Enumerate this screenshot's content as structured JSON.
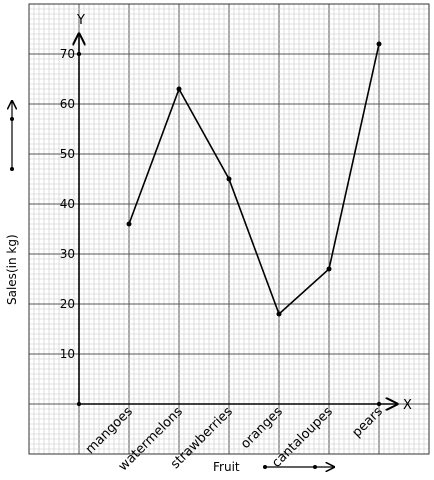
{
  "chart_data": {
    "type": "line",
    "xlabel": "Fruit",
    "ylabel": "Sales(in kg)",
    "x_axis_letter": "X",
    "y_axis_letter": "Y",
    "categories": [
      "mangoes",
      "watermelons",
      "strawberries",
      "oranges",
      "cantaloupes",
      "pears"
    ],
    "values": [
      36,
      63,
      45,
      18,
      27,
      72
    ],
    "ylim": [
      0,
      70
    ],
    "yticks": [
      10,
      20,
      30,
      40,
      50,
      60,
      70
    ],
    "grid": true,
    "line_color": "#000000",
    "grid_minor_color": "#c8c8c8",
    "grid_major_color": "#555555"
  }
}
